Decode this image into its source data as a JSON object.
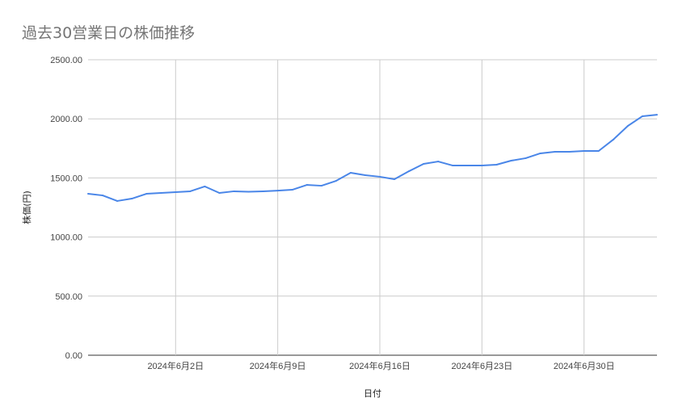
{
  "chart_data": {
    "type": "line",
    "title": "過去30営業日の株価推移",
    "xlabel": "日付",
    "ylabel": "株価(円)",
    "ylim": [
      0,
      2500
    ],
    "yticks": [
      "0.00",
      "500.00",
      "1000.00",
      "1500.00",
      "2000.00",
      "2500.00"
    ],
    "xlim": [
      "2024-05-27",
      "2024-07-05"
    ],
    "xticks": [
      {
        "date": "2024-06-02",
        "label": "2024年6月2日"
      },
      {
        "date": "2024-06-09",
        "label": "2024年6月9日"
      },
      {
        "date": "2024-06-16",
        "label": "2024年6月16日"
      },
      {
        "date": "2024-06-23",
        "label": "2024年6月23日"
      },
      {
        "date": "2024-06-30",
        "label": "2024年6月30日"
      }
    ],
    "grid": true,
    "color": "#4a86e8",
    "start_date": "2024-05-27",
    "values": [
      1366,
      1352,
      1305,
      1325,
      1366,
      1373,
      1380,
      1387,
      1428,
      1373,
      1387,
      1383,
      1387,
      1393,
      1400,
      1441,
      1434,
      1475,
      1544,
      1523,
      1510,
      1489,
      1557,
      1619,
      1639,
      1605,
      1605,
      1605,
      1612,
      1646,
      1667,
      1708,
      1721,
      1721,
      1728,
      1728,
      1824,
      1940,
      2022,
      2035
    ]
  }
}
